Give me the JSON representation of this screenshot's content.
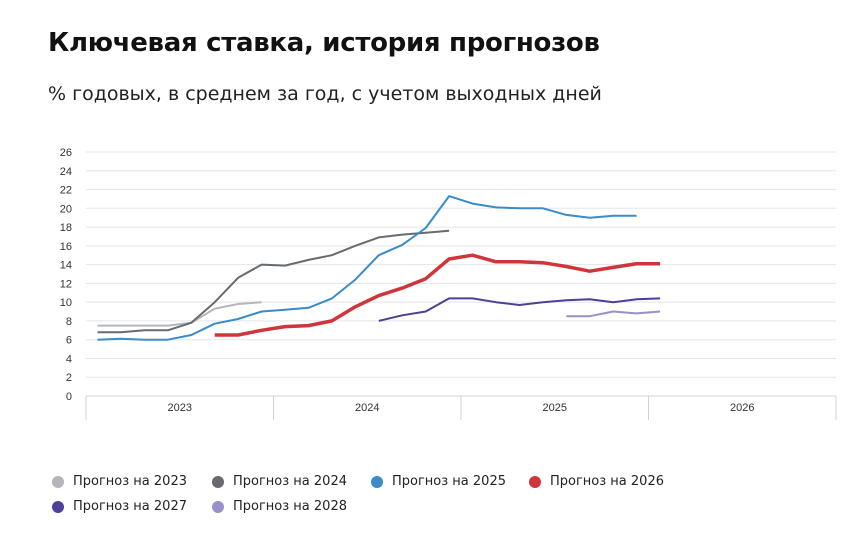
{
  "header": {
    "title": "Ключевая ставка, история прогнозов",
    "subtitle": "% годовых, в среднем за год, с учетом выходных дней"
  },
  "chart_data": {
    "type": "line",
    "title": "Ключевая ставка, история прогнозов",
    "subtitle": "% годовых, в среднем за год, с учетом выходных дней",
    "xlabel": "",
    "ylabel": "",
    "ylim": [
      0,
      26
    ],
    "yticks": [
      0,
      2,
      4,
      6,
      8,
      10,
      12,
      14,
      16,
      18,
      20,
      22,
      24,
      26
    ],
    "grid": true,
    "x_periods": [
      "2023",
      "2024",
      "2025",
      "2026"
    ],
    "points_per_period": 8,
    "legend_position": "bottom",
    "series": [
      {
        "name": "Прогноз на 2023",
        "color": "#b3b6bd",
        "start_index": 0,
        "values": [
          7.5,
          7.5,
          7.5,
          7.5,
          7.8,
          9.3,
          9.8,
          10.0
        ]
      },
      {
        "name": "Прогноз на 2024",
        "color": "#676a70",
        "start_index": 0,
        "values": [
          6.8,
          6.8,
          7.0,
          7.0,
          7.8,
          10.0,
          12.6,
          14.0,
          13.9,
          14.5,
          15.0,
          16.0,
          16.9,
          17.2,
          17.4,
          17.6
        ]
      },
      {
        "name": "Прогноз на 2025",
        "color": "#3a8bc8",
        "start_index": 0,
        "values": [
          6.0,
          6.1,
          6.0,
          6.0,
          6.5,
          7.7,
          8.2,
          9.0,
          9.2,
          9.4,
          10.4,
          12.4,
          15.0,
          16.1,
          17.9,
          21.3,
          20.5,
          20.1,
          20.0,
          20.0,
          19.3,
          19.0,
          19.2,
          19.2
        ]
      },
      {
        "name": "Прогноз на 2026",
        "color": "#d0353b",
        "start_index": 5,
        "values": [
          6.5,
          6.5,
          7.0,
          7.4,
          7.5,
          8.0,
          9.5,
          10.7,
          11.5,
          12.5,
          14.6,
          15.0,
          14.3,
          14.3,
          14.2,
          13.8,
          13.3,
          13.7,
          14.1,
          14.1
        ]
      },
      {
        "name": "Прогноз на 2027",
        "color": "#4e3f98",
        "start_index": 12,
        "values": [
          8.0,
          8.6,
          9.0,
          10.4,
          10.4,
          10.0,
          9.7,
          10.0,
          10.2,
          10.3,
          10.0,
          10.3,
          10.4
        ]
      },
      {
        "name": "Прогноз на 2028",
        "color": "#9a8fc8",
        "start_index": 20,
        "values": [
          8.5,
          8.5,
          9.0,
          8.8,
          9.0
        ]
      }
    ]
  }
}
